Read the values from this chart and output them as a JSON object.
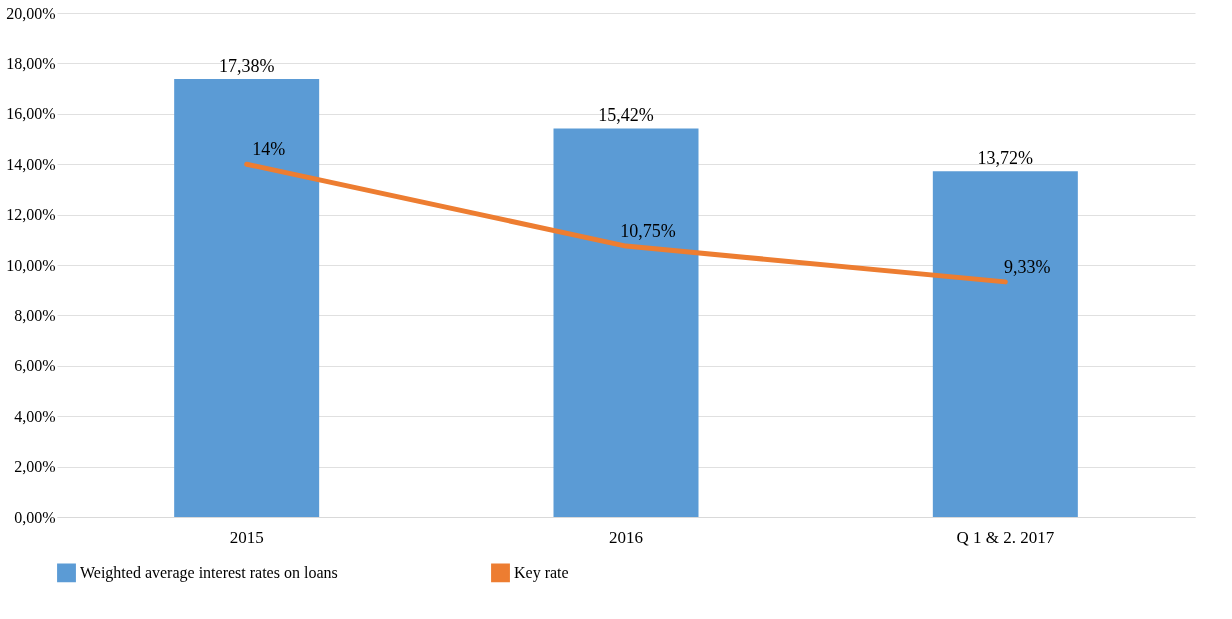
{
  "chart_data": {
    "type": "bar",
    "categories": [
      "2015",
      "2016",
      "Q 1 & 2. 2017"
    ],
    "series": [
      {
        "name": "Weighted average interest rates on loans",
        "color": "#5b9bd5",
        "values": [
          17.38,
          15.42,
          13.72
        ],
        "value_labels": [
          "17,38%",
          "15,42%",
          "13,72%"
        ]
      },
      {
        "name": "Key rate",
        "type": "line",
        "color": "#ed7d31",
        "values": [
          14,
          10.75,
          9.33
        ],
        "value_labels": [
          "14%",
          "10,75%",
          "9,33%"
        ]
      }
    ],
    "ylim": [
      0,
      20
    ],
    "yticks": [
      {
        "value": 0,
        "label": "0,00%"
      },
      {
        "value": 2,
        "label": "2,00%"
      },
      {
        "value": 4,
        "label": "4,00%"
      },
      {
        "value": 6,
        "label": "6,00%"
      },
      {
        "value": 8,
        "label": "8,00%"
      },
      {
        "value": 10,
        "label": "10,00%"
      },
      {
        "value": 12,
        "label": "12,00%"
      },
      {
        "value": 14,
        "label": "14,00%"
      },
      {
        "value": 16,
        "label": "16,00%"
      },
      {
        "value": 18,
        "label": "18,00%"
      },
      {
        "value": 20,
        "label": "20,00%"
      }
    ],
    "grid": "y",
    "legend": "bottom"
  }
}
